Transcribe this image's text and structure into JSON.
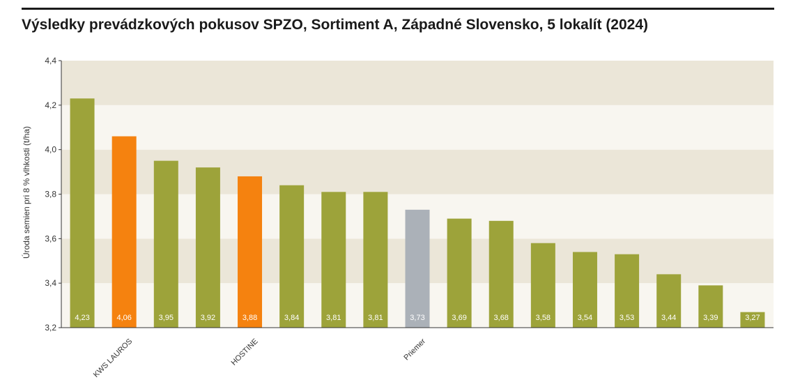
{
  "title": "Výsledky prevádzkových pokusov SPZO, Sortiment A, Západné Slovensko, 5 lokalít (2024)",
  "colors": {
    "highlight": "#f5820f",
    "default": "#9da33a",
    "reference": "#abb1b8",
    "band_dark": "#ebe6d8",
    "band_light": "#f8f6f0"
  },
  "chart_data": {
    "type": "bar",
    "title": "Výsledky prevádzkových pokusov SPZO, Sortiment A, Západné Slovensko, 5 lokalít (2024)",
    "xlabel": "",
    "ylabel": "Úroda semien pri 8 % vlhkosti (t/ha)",
    "ylim": [
      3.2,
      4.4
    ],
    "yticks": [
      "3,2",
      "3,4",
      "3,6",
      "3,8",
      "4,0",
      "4,2",
      "4,4"
    ],
    "ytick_values": [
      3.2,
      3.4,
      3.6,
      3.8,
      4.0,
      4.2,
      4.4
    ],
    "grid": "alternating horizontal bands",
    "legend": "none",
    "categories": [
      "",
      "KWS LAUROS",
      "",
      "",
      "HOSTINE",
      "",
      "",
      "",
      "Priemer",
      "",
      "",
      "",
      "",
      "",
      "",
      "",
      ""
    ],
    "values": [
      4.23,
      4.06,
      3.95,
      3.92,
      3.88,
      3.84,
      3.81,
      3.81,
      3.73,
      3.69,
      3.68,
      3.58,
      3.54,
      3.53,
      3.44,
      3.39,
      3.27
    ],
    "value_labels": [
      "4,23",
      "4,06",
      "3,95",
      "3,92",
      "3,88",
      "3,84",
      "3,81",
      "3,81",
      "3,73",
      "3,69",
      "3,68",
      "3,58",
      "3,54",
      "3,53",
      "3,44",
      "3,39",
      "3,27"
    ],
    "bar_colors": [
      "default",
      "highlight",
      "default",
      "default",
      "highlight",
      "default",
      "default",
      "default",
      "reference",
      "default",
      "default",
      "default",
      "default",
      "default",
      "default",
      "default",
      "default"
    ]
  }
}
